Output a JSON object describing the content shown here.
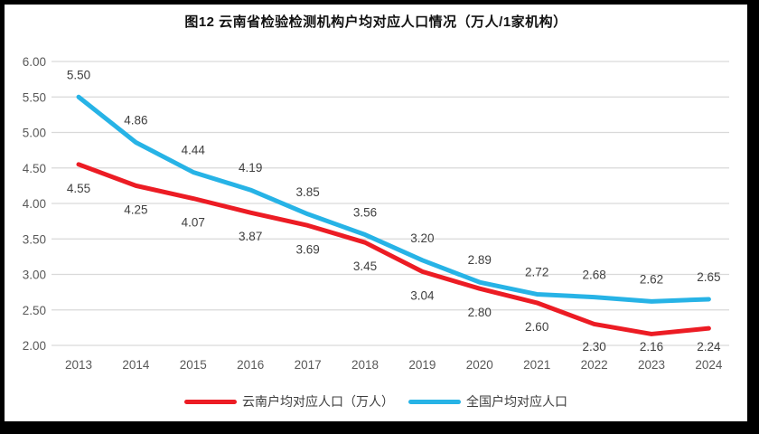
{
  "title": "图12  云南省检验检测机构户均对应人口情况（万人/1家机构）",
  "chart_data": {
    "type": "line",
    "title": "图12  云南省检验检测机构户均对应人口情况（万人/1家机构）",
    "categories": [
      "2013",
      "2014",
      "2015",
      "2016",
      "2017",
      "2018",
      "2019",
      "2020",
      "2021",
      "2022",
      "2023",
      "2024"
    ],
    "series": [
      {
        "name": "云南户均对应人口（万人）",
        "color": "#ec1c24",
        "label_position": "below",
        "values": [
          4.55,
          4.25,
          4.07,
          3.87,
          3.69,
          3.45,
          3.04,
          2.8,
          2.6,
          2.3,
          2.16,
          2.24
        ]
      },
      {
        "name": "全国户均对应人口",
        "color": "#27b3e6",
        "label_position": "above",
        "values": [
          5.5,
          4.86,
          4.44,
          4.19,
          3.85,
          3.56,
          3.2,
          2.89,
          2.72,
          2.68,
          2.62,
          2.65
        ]
      }
    ],
    "y_axis": {
      "min": 2.0,
      "max": 6.0,
      "step": 0.5,
      "tick_labels": [
        "2.00",
        "2.50",
        "3.00",
        "3.50",
        "4.00",
        "4.50",
        "5.00",
        "5.50",
        "6.00"
      ]
    },
    "x_axis_label_color": "#595959",
    "grid": true,
    "gridline_color": "#d9d9d9",
    "data_label_color": "#3f3f3f",
    "legend_position": "bottom"
  }
}
